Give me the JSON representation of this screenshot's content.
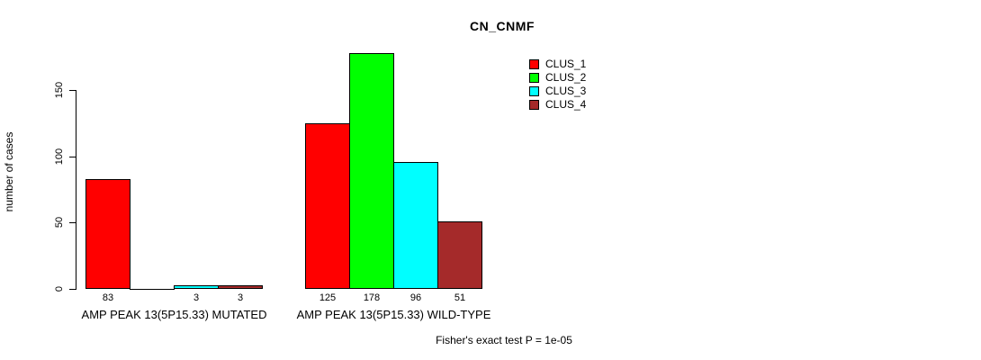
{
  "chart_data": {
    "type": "bar",
    "title": "CN_CNMF",
    "ylabel": "number of cases",
    "yticks": [
      0,
      50,
      100,
      150
    ],
    "axis_range": [
      0,
      150
    ],
    "grid": false,
    "legend_position": "top-right",
    "bar_value_labels": true,
    "categories": [
      "AMP PEAK 13(5P15.33) MUTATED",
      "AMP PEAK 13(5P15.33) WILD-TYPE"
    ],
    "series": [
      {
        "name": "CLUS_1",
        "color": "#FF0000",
        "values": [
          83,
          125
        ]
      },
      {
        "name": "CLUS_2",
        "color": "#00FF00",
        "values": [
          0,
          178
        ]
      },
      {
        "name": "CLUS_3",
        "color": "#00FFFF",
        "values": [
          3,
          96
        ]
      },
      {
        "name": "CLUS_4",
        "color": "#A52A2A",
        "values": [
          3,
          51
        ]
      }
    ],
    "footnote": "Fisher's exact test P = 1e-05"
  }
}
